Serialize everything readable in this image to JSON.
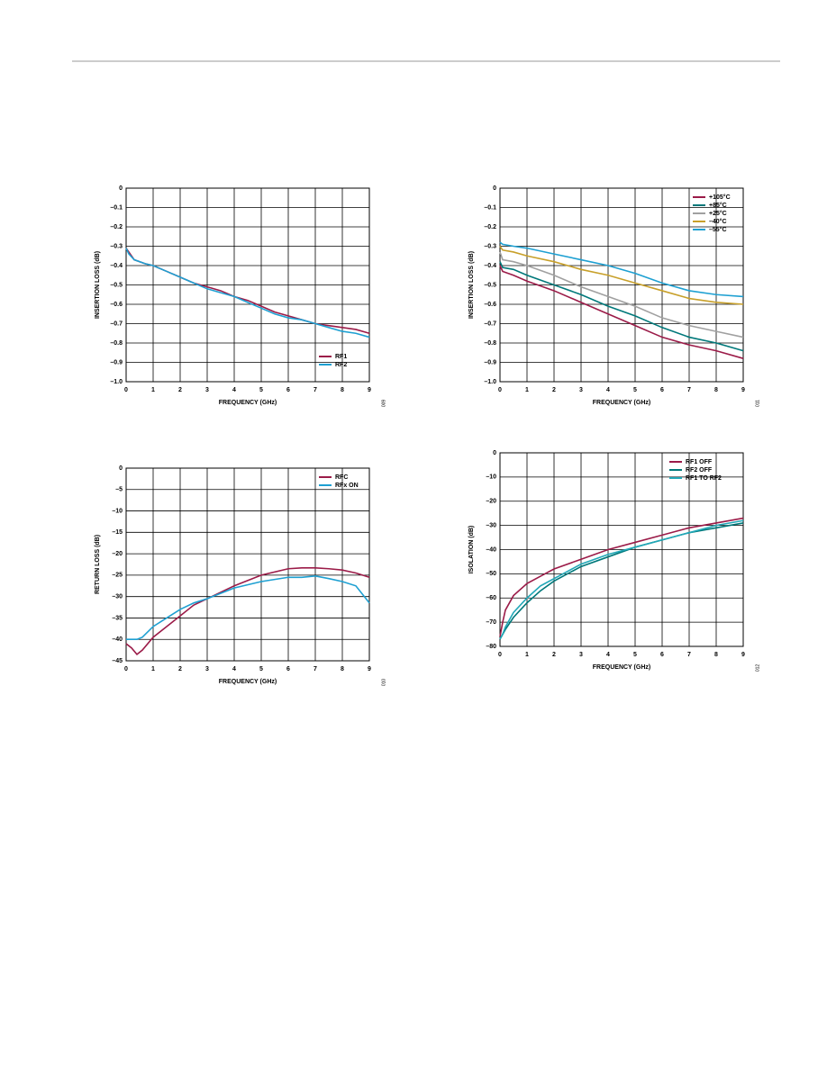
{
  "chart_data": [
    {
      "type": "line",
      "figure_id": "009",
      "xlabel": "FREQUENCY (GHz)",
      "ylabel": "INSERTION LOSS (dB)",
      "xlim": [
        0,
        9
      ],
      "ylim": [
        -1.0,
        0
      ],
      "xticks": [
        0,
        1,
        2,
        3,
        4,
        5,
        6,
        7,
        8,
        9
      ],
      "yticks": [
        0,
        {
          "value": -0.1,
          "label": "–0.1"
        },
        {
          "value": -0.2,
          "label": "–0.2"
        },
        {
          "value": -0.3,
          "label": "–0.3"
        },
        {
          "value": -0.4,
          "label": "–0.4"
        },
        {
          "value": -0.5,
          "label": "–0.5"
        },
        {
          "value": -0.6,
          "label": "–0.6"
        },
        {
          "value": -0.7,
          "label": "–0.7"
        },
        {
          "value": -0.8,
          "label": "–0.8"
        },
        {
          "value": -0.9,
          "label": "–0.9"
        },
        {
          "value": -1.0,
          "label": "–1.0"
        }
      ],
      "grid": true,
      "legend": "lower right",
      "x": [
        0,
        0.1,
        0.3,
        0.7,
        1,
        1.5,
        2,
        2.5,
        3,
        3.5,
        4,
        4.5,
        5,
        5.5,
        6,
        6.5,
        7,
        7.5,
        8,
        8.5,
        9
      ],
      "series": [
        {
          "name": "RF1",
          "color": "#9b1b48",
          "values": [
            -0.31,
            -0.33,
            -0.37,
            -0.39,
            -0.4,
            -0.43,
            -0.46,
            -0.49,
            -0.51,
            -0.53,
            -0.56,
            -0.58,
            -0.61,
            -0.64,
            -0.66,
            -0.68,
            -0.7,
            -0.71,
            -0.72,
            -0.73,
            -0.75
          ]
        },
        {
          "name": "RF2",
          "color": "#1ea0d2",
          "values": [
            -0.31,
            -0.34,
            -0.37,
            -0.39,
            -0.4,
            -0.43,
            -0.46,
            -0.49,
            -0.52,
            -0.54,
            -0.56,
            -0.59,
            -0.62,
            -0.65,
            -0.67,
            -0.68,
            -0.7,
            -0.72,
            -0.74,
            -0.75,
            -0.77
          ]
        }
      ]
    },
    {
      "type": "line",
      "figure_id": "011",
      "xlabel": "FREQUENCY (GHz)",
      "ylabel": "INSERTION LOSS (dB)",
      "xlim": [
        0,
        9
      ],
      "ylim": [
        -1.0,
        0
      ],
      "xticks": [
        0,
        1,
        2,
        3,
        4,
        5,
        6,
        7,
        8,
        9
      ],
      "yticks": [
        0,
        {
          "value": -0.1,
          "label": "–0.1"
        },
        {
          "value": -0.2,
          "label": "–0.2"
        },
        {
          "value": -0.3,
          "label": "–0.3"
        },
        {
          "value": -0.4,
          "label": "–0.4"
        },
        {
          "value": -0.5,
          "label": "–0.5"
        },
        {
          "value": -0.6,
          "label": "–0.6"
        },
        {
          "value": -0.7,
          "label": "–0.7"
        },
        {
          "value": -0.8,
          "label": "–0.8"
        },
        {
          "value": -0.9,
          "label": "–0.9"
        },
        {
          "value": -1.0,
          "label": "–1.0"
        }
      ],
      "grid": true,
      "legend": "upper right",
      "x": [
        0,
        0.1,
        0.5,
        1,
        2,
        3,
        4,
        5,
        6,
        7,
        8,
        9
      ],
      "series": [
        {
          "name": "+105°C",
          "color": "#9b1b48",
          "values": [
            -0.4,
            -0.43,
            -0.45,
            -0.48,
            -0.53,
            -0.59,
            -0.65,
            -0.71,
            -0.77,
            -0.81,
            -0.84,
            -0.88
          ]
        },
        {
          "name": "+85°C",
          "color": "#00787a",
          "values": [
            -0.38,
            -0.41,
            -0.42,
            -0.45,
            -0.5,
            -0.55,
            -0.61,
            -0.66,
            -0.72,
            -0.77,
            -0.8,
            -0.84
          ]
        },
        {
          "name": "+25°C",
          "color": "#a0a0a0",
          "values": [
            -0.33,
            -0.37,
            -0.38,
            -0.4,
            -0.45,
            -0.51,
            -0.56,
            -0.61,
            -0.67,
            -0.71,
            -0.74,
            -0.77
          ]
        },
        {
          "name": "–40°C",
          "color": "#c8a02a",
          "values": [
            -0.3,
            -0.32,
            -0.33,
            -0.35,
            -0.38,
            -0.42,
            -0.45,
            -0.49,
            -0.53,
            -0.57,
            -0.59,
            -0.6
          ]
        },
        {
          "name": "–55°C",
          "color": "#1ea0d2",
          "values": [
            -0.28,
            -0.29,
            -0.3,
            -0.31,
            -0.34,
            -0.37,
            -0.4,
            -0.44,
            -0.49,
            -0.53,
            -0.55,
            -0.56
          ]
        }
      ]
    },
    {
      "type": "line",
      "figure_id": "010",
      "xlabel": "FREQUENCY (GHz)",
      "ylabel": "RETURN LOSS (dB)",
      "xlim": [
        0,
        9
      ],
      "ylim": [
        -45,
        0
      ],
      "xticks": [
        0,
        1,
        2,
        3,
        4,
        5,
        6,
        7,
        8,
        9
      ],
      "yticks": [
        0,
        {
          "value": -5,
          "label": "–5"
        },
        {
          "value": -10,
          "label": "–10"
        },
        {
          "value": -15,
          "label": "–15"
        },
        {
          "value": -20,
          "label": "–20"
        },
        {
          "value": -25,
          "label": "–25"
        },
        {
          "value": -30,
          "label": "–30"
        },
        {
          "value": -35,
          "label": "–35"
        },
        {
          "value": -40,
          "label": "–40"
        },
        {
          "value": -45,
          "label": "–45"
        }
      ],
      "grid": true,
      "legend": "upper right",
      "x": [
        0,
        0.2,
        0.4,
        0.6,
        1,
        1.5,
        2,
        2.5,
        3,
        4,
        5,
        6,
        6.5,
        7,
        7.5,
        8,
        8.5,
        9
      ],
      "series": [
        {
          "name": "RFC",
          "color": "#9b1b48",
          "values": [
            -41,
            -42,
            -43.5,
            -42.5,
            -39.5,
            -37,
            -34.5,
            -32,
            -30.5,
            -27.5,
            -25,
            -23.5,
            -23.3,
            -23.3,
            -23.5,
            -23.8,
            -24.5,
            -25.5
          ]
        },
        {
          "name": "RFx ON",
          "color": "#1ea0d2",
          "values": [
            -40,
            -40,
            -40,
            -39.5,
            -37,
            -35,
            -33,
            -31.5,
            -30.5,
            -28,
            -26.5,
            -25.5,
            -25.5,
            -25.2,
            -25.8,
            -26.5,
            -27.5,
            -31.5
          ]
        }
      ]
    },
    {
      "type": "line",
      "figure_id": "012",
      "xlabel": "FREQUENCY (GHz)",
      "ylabel": "ISOLATION (dB)",
      "xlim": [
        0,
        9
      ],
      "ylim": [
        -80,
        0
      ],
      "xticks": [
        0,
        1,
        2,
        3,
        4,
        5,
        6,
        7,
        8,
        9
      ],
      "yticks": [
        0,
        {
          "value": -10,
          "label": "–10"
        },
        {
          "value": -20,
          "label": "–20"
        },
        {
          "value": -30,
          "label": "–30"
        },
        {
          "value": -40,
          "label": "–40"
        },
        {
          "value": -50,
          "label": "–50"
        },
        {
          "value": -60,
          "label": "–60"
        },
        {
          "value": -70,
          "label": "–70"
        },
        {
          "value": -80,
          "label": "–80"
        }
      ],
      "grid": true,
      "legend": "upper right",
      "x": [
        0,
        0.1,
        0.2,
        0.5,
        1,
        1.5,
        2,
        3,
        4,
        5,
        6,
        7,
        8,
        9
      ],
      "series": [
        {
          "name": "RF1 OFF",
          "color": "#9b1b48",
          "values": [
            -76,
            -70,
            -65,
            -59,
            -54,
            -51,
            -48,
            -44,
            -40,
            -37,
            -34,
            -31,
            -29,
            -27
          ]
        },
        {
          "name": "RF2 OFF",
          "color": "#00787a",
          "values": [
            -77,
            -75,
            -73,
            -68,
            -62,
            -57,
            -53,
            -47,
            -43,
            -39,
            -36,
            -33,
            -31,
            -29
          ]
        },
        {
          "name": "RF1 TO RF2",
          "color": "#22a8b8",
          "values": [
            -77,
            -75,
            -72,
            -66,
            -60,
            -55,
            -52,
            -46,
            -42,
            -39,
            -36,
            -33,
            -30,
            -28
          ]
        }
      ]
    }
  ]
}
